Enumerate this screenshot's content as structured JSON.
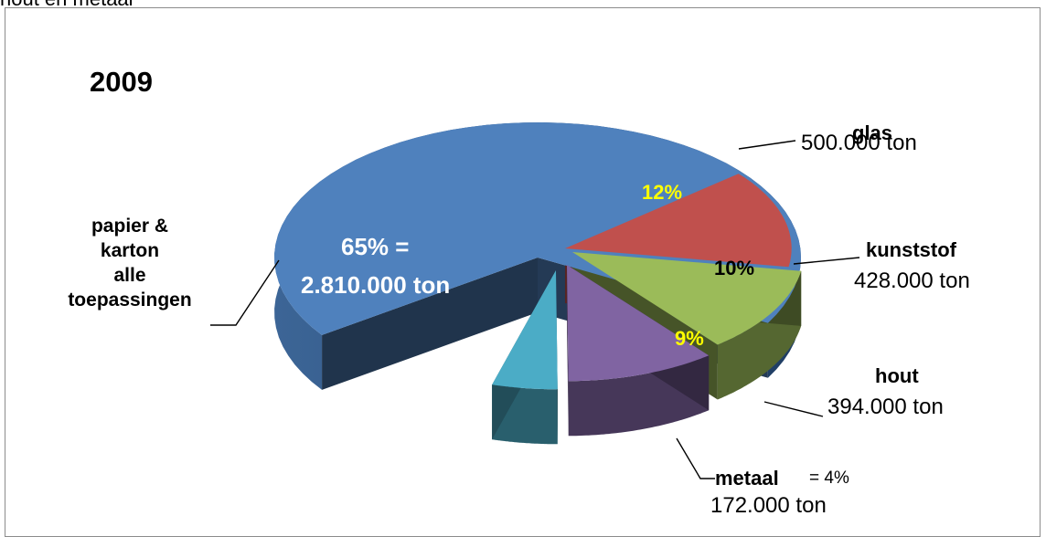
{
  "top_caption": "hout en metaal",
  "chart_data": {
    "type": "pie",
    "title": "2009",
    "slices": [
      {
        "name": "papier & karton alle toepassingen",
        "percent": 65,
        "value": 2810000,
        "pct_text": "65%    =",
        "value_text": "2.810.000 ton",
        "color": "#4f81bd"
      },
      {
        "name": "glas",
        "percent": 12,
        "value": 500000,
        "pct_text": "12%",
        "value_text": "500.000 ton",
        "color": "#c0504d"
      },
      {
        "name": "kunststof",
        "percent": 10,
        "value": 428000,
        "pct_text": "10%",
        "value_text": "428.000 ton",
        "color": "#9bbb59"
      },
      {
        "name": "hout",
        "percent": 9,
        "value": 394000,
        "pct_text": "9%",
        "value_text": "394.000 ton",
        "color": "#8064a2"
      },
      {
        "name": "metaal",
        "percent": 4,
        "value": 172000,
        "pct_text": "= 4%",
        "value_text": "172.000 ton",
        "color": "#4bacc6"
      }
    ],
    "labels": {
      "papier": [
        "papier &",
        "karton",
        "alle",
        "toepassingen"
      ],
      "glas": "glas",
      "kunststof": "kunststof",
      "hout": "hout",
      "metaal": "metaal"
    }
  }
}
